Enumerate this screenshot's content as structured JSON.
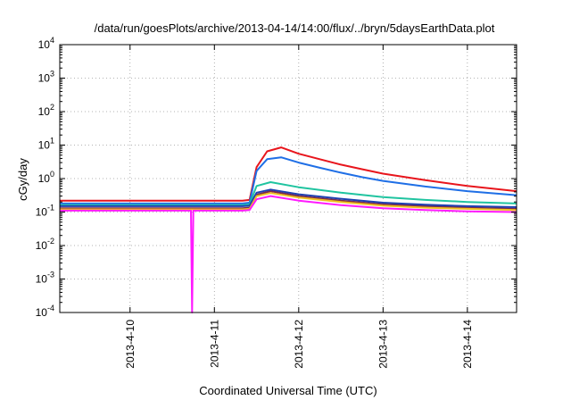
{
  "chart_data": {
    "type": "line",
    "title": "/data/run/goesPlots/archive/2013-04-14/14:00/flux/../bryn/5daysEarthData.plot",
    "xlabel": "Coordinated Universal Time (UTC)",
    "ylabel": "cGy/day",
    "yscale": "log",
    "ylim": [
      0.0001,
      10000
    ],
    "y_ticks": [
      {
        "value": 0.0001,
        "base": "10",
        "exp": "-4"
      },
      {
        "value": 0.001,
        "base": "10",
        "exp": "-3"
      },
      {
        "value": 0.01,
        "base": "10",
        "exp": "-2"
      },
      {
        "value": 0.1,
        "base": "10",
        "exp": "-1"
      },
      {
        "value": 1,
        "base": "10",
        "exp": "0"
      },
      {
        "value": 10,
        "base": "10",
        "exp": "1"
      },
      {
        "value": 100,
        "base": "10",
        "exp": "2"
      },
      {
        "value": 1000,
        "base": "10",
        "exp": "3"
      },
      {
        "value": 10000,
        "base": "10",
        "exp": "4"
      }
    ],
    "xlim": [
      "2013-04-09 04:00",
      "2013-04-14 14:00"
    ],
    "x_ticks": [
      "2013-4-10",
      "2013-4-11",
      "2013-4-12",
      "2013-4-13",
      "2013-4-14"
    ],
    "grid": true,
    "series": [
      {
        "color": "#e8151c",
        "x": [
          "2013-04-09 04:00",
          "2013-04-10 12:00",
          "2013-04-11 08:00",
          "2013-04-11 10:00",
          "2013-04-11 12:00",
          "2013-04-11 15:00",
          "2013-04-11 19:00",
          "2013-04-12 00:00",
          "2013-04-12 06:00",
          "2013-04-12 12:00",
          "2013-04-12 18:00",
          "2013-04-13 00:00",
          "2013-04-13 12:00",
          "2013-04-14 00:00",
          "2013-04-14 14:00"
        ],
        "values": [
          0.22,
          0.22,
          0.22,
          0.23,
          2.2,
          6.5,
          8.5,
          5.5,
          3.8,
          2.6,
          1.9,
          1.4,
          0.9,
          0.6,
          0.42
        ]
      },
      {
        "color": "#1f6fe6",
        "x": [
          "2013-04-09 04:00",
          "2013-04-10 12:00",
          "2013-04-11 08:00",
          "2013-04-11 10:00",
          "2013-04-11 12:00",
          "2013-04-11 15:00",
          "2013-04-11 19:00",
          "2013-04-12 00:00",
          "2013-04-12 06:00",
          "2013-04-12 12:00",
          "2013-04-12 18:00",
          "2013-04-13 00:00",
          "2013-04-13 12:00",
          "2013-04-14 00:00",
          "2013-04-14 14:00"
        ],
        "values": [
          0.18,
          0.18,
          0.18,
          0.19,
          1.7,
          3.8,
          4.3,
          3.0,
          2.1,
          1.5,
          1.1,
          0.85,
          0.58,
          0.42,
          0.32
        ]
      },
      {
        "color": "#20c4a0",
        "x": [
          "2013-04-09 04:00",
          "2013-04-10 12:00",
          "2013-04-11 08:00",
          "2013-04-11 10:00",
          "2013-04-11 12:00",
          "2013-04-11 16:00",
          "2013-04-12 00:00",
          "2013-04-12 12:00",
          "2013-04-13 00:00",
          "2013-04-13 12:00",
          "2013-04-14 00:00",
          "2013-04-14 14:00"
        ],
        "values": [
          0.16,
          0.16,
          0.16,
          0.17,
          0.6,
          0.78,
          0.55,
          0.38,
          0.28,
          0.23,
          0.2,
          0.18
        ]
      },
      {
        "color": "#7a2a4a",
        "x": [
          "2013-04-09 04:00",
          "2013-04-10 12:00",
          "2013-04-11 08:00",
          "2013-04-11 10:00",
          "2013-04-11 12:00",
          "2013-04-11 16:00",
          "2013-04-12 00:00",
          "2013-04-12 12:00",
          "2013-04-13 00:00",
          "2013-04-13 12:00",
          "2013-04-14 00:00",
          "2013-04-14 14:00"
        ],
        "values": [
          0.13,
          0.13,
          0.13,
          0.135,
          0.33,
          0.42,
          0.3,
          0.22,
          0.17,
          0.15,
          0.135,
          0.125
        ]
      },
      {
        "color": "#1f3fb0",
        "x": [
          "2013-04-09 04:00",
          "2013-04-10 12:00",
          "2013-04-11 08:00",
          "2013-04-11 10:00",
          "2013-04-11 12:00",
          "2013-04-11 16:00",
          "2013-04-12 00:00",
          "2013-04-12 12:00",
          "2013-04-13 00:00",
          "2013-04-13 12:00",
          "2013-04-14 00:00",
          "2013-04-14 14:00"
        ],
        "values": [
          0.15,
          0.15,
          0.15,
          0.155,
          0.38,
          0.47,
          0.34,
          0.25,
          0.19,
          0.165,
          0.15,
          0.14
        ]
      },
      {
        "color": "#f0c020",
        "x": [
          "2013-04-09 04:00",
          "2013-04-10 12:00",
          "2013-04-11 08:00",
          "2013-04-11 10:00",
          "2013-04-11 12:00",
          "2013-04-11 16:00",
          "2013-04-12 00:00",
          "2013-04-12 12:00",
          "2013-04-13 00:00",
          "2013-04-13 12:00",
          "2013-04-14 00:00",
          "2013-04-14 14:00"
        ],
        "values": [
          0.12,
          0.12,
          0.12,
          0.125,
          0.3,
          0.37,
          0.27,
          0.2,
          0.155,
          0.135,
          0.125,
          0.115
        ]
      },
      {
        "color": "#ff1aff",
        "x": [
          "2013-04-09 04:00",
          "2013-04-10 12:00",
          "2013-04-10 17:20",
          "2013-04-10 17:40",
          "2013-04-10 18:00",
          "2013-04-11 08:00",
          "2013-04-11 10:00",
          "2013-04-11 12:00",
          "2013-04-11 16:00",
          "2013-04-12 00:00",
          "2013-04-12 12:00",
          "2013-04-13 00:00",
          "2013-04-13 12:00",
          "2013-04-14 00:00",
          "2013-04-14 14:00"
        ],
        "values": [
          0.11,
          0.11,
          0.11,
          0.0001,
          0.11,
          0.11,
          0.115,
          0.24,
          0.3,
          0.22,
          0.16,
          0.13,
          0.115,
          0.105,
          0.1
        ]
      }
    ]
  }
}
